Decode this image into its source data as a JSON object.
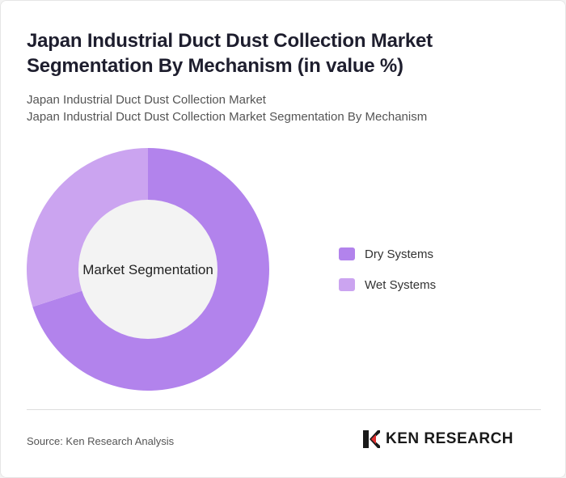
{
  "header": {
    "title": "Japan Industrial Duct Dust Collection Market Segmentation By Mechanism (in value %)",
    "subtitle_1": "Japan Industrial Duct Dust Collection Market",
    "subtitle_2": "Japan Industrial Duct Dust Collection Market Segmentation By Mechanism"
  },
  "chart_data": {
    "type": "pie",
    "variant": "donut",
    "center_label": "Market Segmentation",
    "series": [
      {
        "name": "Dry Systems",
        "value": 70,
        "color": "#b283ec"
      },
      {
        "name": "Wet Systems",
        "value": 30,
        "color": "#cba4f0"
      }
    ],
    "legend_position": "right",
    "center_color": "#f3f3f3"
  },
  "footer": {
    "source": "Source: Ken Research Analysis",
    "logo_text": "KEN RESEARCH"
  }
}
